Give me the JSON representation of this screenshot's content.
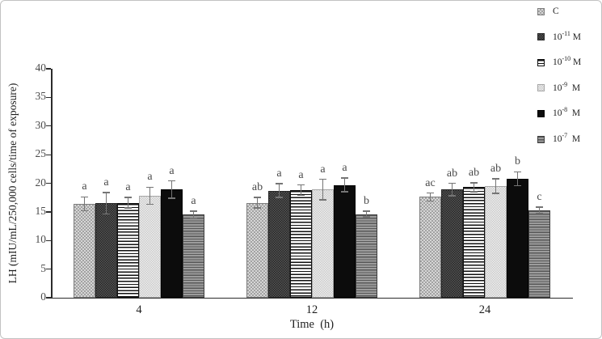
{
  "chart_data": {
    "type": "bar",
    "title": "",
    "xlabel": "Time  (h)",
    "ylabel": "LH (mIU/mL/250,000 cells/time of exposure)",
    "categories": [
      "4",
      "12",
      "24"
    ],
    "ylim": [
      0,
      40
    ],
    "yticks": [
      0,
      5,
      10,
      15,
      20,
      25,
      30,
      35,
      40
    ],
    "grid": false,
    "legend_position": "top-right",
    "series": [
      {
        "name": "C",
        "legend": {
          "base": "C",
          "exp": "",
          "suffix": ""
        },
        "pattern": "light-checker",
        "values": [
          16.4,
          16.6,
          17.6
        ],
        "errors": [
          1.2,
          0.9,
          0.7
        ],
        "letters": [
          "a",
          "ab",
          "ac"
        ]
      },
      {
        "name": "10^-11 M",
        "legend": {
          "base": "10",
          "exp": "-11",
          "suffix": " M"
        },
        "pattern": "dark-dot",
        "values": [
          16.5,
          18.7,
          18.9
        ],
        "errors": [
          1.9,
          1.2,
          1.1
        ],
        "letters": [
          "a",
          "a",
          "ab"
        ]
      },
      {
        "name": "10^-10 M",
        "legend": {
          "base": "10",
          "exp": "-10",
          "suffix": " M"
        },
        "pattern": "bw-hstripe",
        "values": [
          16.6,
          18.8,
          19.3
        ],
        "errors": [
          0.9,
          0.9,
          0.8
        ],
        "letters": [
          "a",
          "a",
          "ab"
        ]
      },
      {
        "name": "10^-9 M",
        "legend": {
          "base": "10",
          "exp": "-9",
          "suffix": "  M"
        },
        "pattern": "xlight-checker",
        "values": [
          17.8,
          18.9,
          19.5
        ],
        "errors": [
          1.5,
          1.8,
          1.3
        ],
        "letters": [
          "a",
          "a",
          "ab"
        ]
      },
      {
        "name": "10^-8 M",
        "legend": {
          "base": "10",
          "exp": "-8",
          "suffix": "  M"
        },
        "pattern": "solid-black",
        "values": [
          18.9,
          19.7,
          20.8
        ],
        "errors": [
          1.5,
          1.2,
          1.2
        ],
        "letters": [
          "a",
          "a",
          "b"
        ]
      },
      {
        "name": "10^-7 M",
        "legend": {
          "base": "10",
          "exp": "-7",
          "suffix": "  M"
        },
        "pattern": "gray-hstripe",
        "values": [
          14.5,
          14.6,
          15.3
        ],
        "errors": [
          0.6,
          0.5,
          0.5
        ],
        "letters": [
          "a",
          "b",
          "c"
        ]
      }
    ],
    "colors": {
      "axis": "#2b2b2b",
      "tick_label": "#4c4c4c",
      "letter": "#4a4a4a",
      "error_bar": "#757575"
    }
  }
}
